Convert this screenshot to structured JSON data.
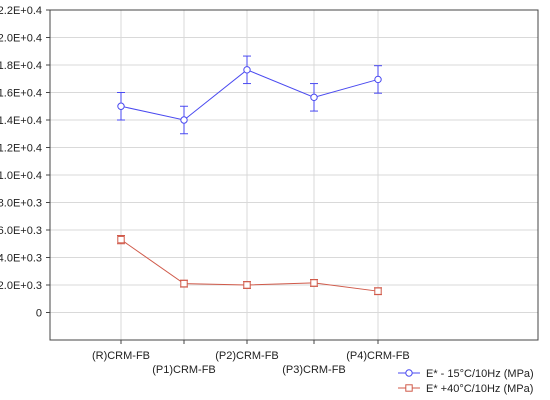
{
  "chart_data": {
    "type": "line",
    "title": "",
    "xlabel": "",
    "ylabel": "",
    "categories": [
      "(R)CRM-FB",
      "(P1)CRM-FB",
      "(P2)CRM-FB",
      "(P3)CRM-FB",
      "(P4)CRM-FB"
    ],
    "ylim": [
      -2000,
      22000
    ],
    "yticks": [
      0,
      2000,
      4000,
      6000,
      8000,
      10000,
      12000,
      14000,
      16000,
      18000,
      20000,
      22000
    ],
    "ytick_labels": [
      "0",
      "2.0E+0.3",
      "4.0E+0.3",
      "6.0E+0.3",
      "8.0E+0.3",
      "1.0E+0.4",
      "1.2E+0.4",
      "1.4E+0.4",
      "1.6E+0.4",
      "1.8E+0.4",
      "2.0E+0.4",
      "2.2E+0.4"
    ],
    "grid": true,
    "legend_position": "bottom-right",
    "series": [
      {
        "name": "E* - 15°C/10Hz (MPa)",
        "color": "#4a4af0",
        "marker": "circle",
        "values": [
          15000,
          14000,
          17650,
          15650,
          16950
        ],
        "error": [
          1000,
          1000,
          1000,
          1000,
          1000
        ]
      },
      {
        "name": "E* +40°C/10Hz (MPa)",
        "color": "#d05a4a",
        "marker": "square",
        "values": [
          5300,
          2100,
          2000,
          2150,
          1550
        ],
        "error": [
          300,
          250,
          250,
          250,
          250
        ]
      }
    ]
  }
}
